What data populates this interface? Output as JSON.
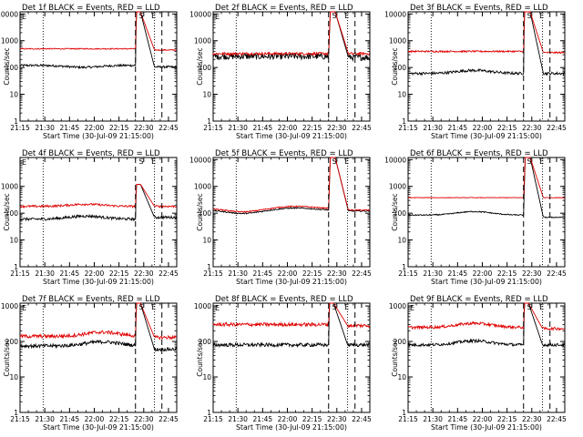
{
  "chart_data": [
    {
      "type": "line",
      "title": "Det 1f BLACK = Events, RED = LLD",
      "xlabel": "Start Time (30-Jul-09 21:15:00)",
      "ylabel": "Counts/sec",
      "yscale": "log",
      "ylim": [
        1,
        12000
      ],
      "xlim": [
        0,
        95
      ],
      "ymax_tick": 10000,
      "x_ticks": [
        0,
        15,
        30,
        45,
        60,
        75,
        90
      ],
      "x_tick_labels": [
        "21:15",
        "21:30",
        "21:45",
        "22:00",
        "22:15",
        "22:30",
        "22:45"
      ],
      "series": [
        {
          "name": "Events",
          "color": "#000000",
          "base": 120,
          "dips": [
            [
              38,
              0.85
            ]
          ],
          "noise": 0.04,
          "peak_scale": 1
        },
        {
          "name": "LLD",
          "color": "#e00000",
          "base": 500,
          "dips": [],
          "noise": 0.02,
          "peak_scale": 1
        }
      ],
      "peak": {
        "start": 70,
        "rise": 70.5,
        "top": 10000,
        "fall_start": 73,
        "end": 81.5,
        "post_black": 105,
        "post_red": 450
      },
      "markers": {
        "dotted": [
          14,
          81.5
        ],
        "dashed": [
          70,
          86
        ],
        "letters": [
          {
            "text": "S",
            "x": 73.5
          },
          {
            "text": "E",
            "x": 81
          }
        ],
        "e_left": "E"
      }
    },
    {
      "type": "line",
      "title": "Det 2f BLACK = Events, RED = LLD",
      "xlabel": "Start Time (30-Jul-09 21:15:00)",
      "ylabel": "Counts/sec",
      "yscale": "log",
      "ylim": [
        1,
        12000
      ],
      "xlim": [
        0,
        95
      ],
      "ymax_tick": 10000,
      "x_ticks": [
        0,
        15,
        30,
        45,
        60,
        75,
        90
      ],
      "x_tick_labels": [
        "21:15",
        "21:30",
        "21:45",
        "22:00",
        "22:15",
        "22:30",
        "22:45"
      ],
      "series": [
        {
          "name": "Events",
          "color": "#000000",
          "base": 260,
          "dips": [],
          "noise": 0.12,
          "peak_scale": 1
        },
        {
          "name": "LLD",
          "color": "#e00000",
          "base": 330,
          "dips": [],
          "noise": 0.05,
          "peak_scale": 1
        }
      ],
      "peak": {
        "start": 70,
        "rise": 71,
        "top": 10000,
        "fall_start": 74,
        "end": 82,
        "post_black": 240,
        "post_red": 330
      },
      "markers": {
        "dotted": [
          14,
          81.5
        ],
        "dashed": [
          70,
          86
        ],
        "letters": [
          {
            "text": "S",
            "x": 73.5
          },
          {
            "text": "E",
            "x": 81
          }
        ],
        "e_left": "E"
      }
    },
    {
      "type": "line",
      "title": "Det 3f BLACK = Events, RED = LLD",
      "xlabel": "Start Time (30-Jul-09 21:15:00)",
      "ylabel": "Counts/sec",
      "yscale": "log",
      "ylim": [
        1,
        12000
      ],
      "xlim": [
        0,
        95
      ],
      "ymax_tick": 10000,
      "x_ticks": [
        0,
        15,
        30,
        45,
        60,
        75,
        90
      ],
      "x_tick_labels": [
        "21:15",
        "21:30",
        "21:45",
        "22:00",
        "22:15",
        "22:30",
        "22:45"
      ],
      "series": [
        {
          "name": "Events",
          "color": "#000000",
          "base": 60,
          "dips": [
            [
              40,
              1.3
            ]
          ],
          "noise": 0.05,
          "peak_scale": 1
        },
        {
          "name": "LLD",
          "color": "#e00000",
          "base": 400,
          "dips": [],
          "noise": 0.03,
          "peak_scale": 1
        }
      ],
      "peak": {
        "start": 70,
        "rise": 70.5,
        "top": 10000,
        "fall_start": 74,
        "end": 82,
        "post_black": 60,
        "post_red": 360
      },
      "markers": {
        "dotted": [
          14,
          81.5
        ],
        "dashed": [
          70,
          86
        ],
        "letters": [
          {
            "text": "S",
            "x": 73.5
          },
          {
            "text": "E",
            "x": 81
          }
        ],
        "e_left": ""
      }
    },
    {
      "type": "line",
      "title": "Det 4f BLACK = Events, RED = LLD",
      "xlabel": "Start Time (30-Jul-09 21:15:00)",
      "ylabel": "Counts/sec",
      "yscale": "log",
      "ylim": [
        1,
        12000
      ],
      "xlim": [
        0,
        95
      ],
      "ymax_tick": 1000,
      "x_ticks": [
        0,
        15,
        30,
        45,
        60,
        75,
        90
      ],
      "x_tick_labels": [
        "21:15",
        "21:30",
        "21:45",
        "22:00",
        "22:15",
        "22:30",
        "22:45"
      ],
      "series": [
        {
          "name": "Events",
          "color": "#000000",
          "base": 60,
          "dips": [
            [
              40,
              1.3
            ]
          ],
          "noise": 0.05,
          "peak_scale": 1
        },
        {
          "name": "LLD",
          "color": "#e00000",
          "base": 180,
          "dips": [
            [
              40,
              1.2
            ]
          ],
          "noise": 0.04,
          "peak_scale": 1
        }
      ],
      "peak": {
        "start": 70,
        "rise": 70.5,
        "top": 1000,
        "fall_start": 73,
        "end": 81.5,
        "post_black": 70,
        "post_red": 180
      },
      "markers": {
        "dotted": [
          14,
          81.5
        ],
        "dashed": [
          70,
          86
        ],
        "letters": [
          {
            "text": "S",
            "x": 73.5
          },
          {
            "text": "E",
            "x": 81
          }
        ],
        "e_left": "E"
      }
    },
    {
      "type": "line",
      "title": "Det 5f BLACK = Events, RED = LLD",
      "xlabel": "Start Time (30-Jul-09 21:15:00)",
      "ylabel": "Counts/sec",
      "yscale": "log",
      "ylim": [
        1,
        12000
      ],
      "xlim": [
        0,
        95
      ],
      "ymax_tick": 10000,
      "x_ticks": [
        0,
        15,
        30,
        45,
        60,
        75,
        90
      ],
      "x_tick_labels": [
        "21:15",
        "21:30",
        "21:45",
        "22:00",
        "22:15",
        "22:30",
        "22:45"
      ],
      "series": [
        {
          "name": "Events",
          "color": "#000000",
          "base": 130,
          "dips": [
            [
              18,
              0.75
            ],
            [
              50,
              1.2
            ]
          ],
          "noise": 0.02,
          "peak_scale": 1
        },
        {
          "name": "LLD",
          "color": "#e00000",
          "base": 150,
          "dips": [
            [
              18,
              0.75
            ],
            [
              50,
              1.2
            ]
          ],
          "noise": 0.02,
          "peak_scale": 1
        }
      ],
      "peak": {
        "start": 70,
        "rise": 71,
        "top": 10000,
        "fall_start": 74,
        "end": 82,
        "post_black": 120,
        "post_red": 130
      },
      "markers": {
        "dotted": [
          14,
          81.5
        ],
        "dashed": [
          70,
          86
        ],
        "letters": [
          {
            "text": "S",
            "x": 73.5
          },
          {
            "text": "E",
            "x": 81
          }
        ],
        "e_left": ""
      }
    },
    {
      "type": "line",
      "title": "Det 6f BLACK = Events, RED = LLD",
      "xlabel": "Start Time (30-Jul-09 21:15:00)",
      "ylabel": "Counts/sec",
      "yscale": "log",
      "ylim": [
        1,
        12000
      ],
      "xlim": [
        0,
        95
      ],
      "ymax_tick": 10000,
      "x_ticks": [
        0,
        15,
        30,
        45,
        60,
        75,
        90
      ],
      "x_tick_labels": [
        "21:15",
        "21:30",
        "21:45",
        "22:00",
        "22:15",
        "22:30",
        "22:45"
      ],
      "series": [
        {
          "name": "Events",
          "color": "#000000",
          "base": 85,
          "dips": [
            [
              40,
              1.35
            ]
          ],
          "noise": 0.02,
          "peak_scale": 1
        },
        {
          "name": "LLD",
          "color": "#e00000",
          "base": 380,
          "dips": [],
          "noise": 0.01,
          "peak_scale": 1
        }
      ],
      "peak": {
        "start": 70,
        "rise": 71,
        "top": 10000,
        "fall_start": 74,
        "end": 82,
        "post_black": 70,
        "post_red": 380
      },
      "markers": {
        "dotted": [
          14,
          81.5
        ],
        "dashed": [
          70,
          86
        ],
        "letters": [
          {
            "text": "S",
            "x": 73.5
          },
          {
            "text": "E",
            "x": 81
          }
        ],
        "e_left": ""
      }
    },
    {
      "type": "line",
      "title": "Det 7f BLACK = Events, RED = LLD",
      "xlabel": "Start Time (30-Jul-09 21:15:00)",
      "ylabel": "Counts/sec",
      "yscale": "log",
      "ylim": [
        1,
        1200
      ],
      "xlim": [
        0,
        95
      ],
      "ymax_tick": 1000,
      "x_ticks": [
        0,
        15,
        30,
        45,
        60,
        75,
        90
      ],
      "x_tick_labels": [
        "21:15",
        "21:30",
        "21:45",
        "22:00",
        "22:15",
        "22:30",
        "22:45"
      ],
      "series": [
        {
          "name": "Events",
          "color": "#000000",
          "base": 75,
          "dips": [
            [
              50,
              1.3
            ]
          ],
          "noise": 0.05,
          "peak_scale": 1
        },
        {
          "name": "LLD",
          "color": "#e00000",
          "base": 140,
          "dips": [
            [
              50,
              1.3
            ]
          ],
          "noise": 0.05,
          "peak_scale": 1
        }
      ],
      "peak": {
        "start": 70,
        "rise": 70.5,
        "top": 1000,
        "fall_start": 73,
        "end": 81.5,
        "post_black": 60,
        "post_red": 130
      },
      "markers": {
        "dotted": [
          14,
          81.5
        ],
        "dashed": [
          70,
          86
        ],
        "letters": [
          {
            "text": "S",
            "x": 73.5
          },
          {
            "text": "E",
            "x": 81
          }
        ],
        "e_left": "E"
      }
    },
    {
      "type": "line",
      "title": "Det 8f BLACK = Events, RED = LLD",
      "xlabel": "Start Time (30-Jul-09 21:15:00)",
      "ylabel": "Counts/sec",
      "yscale": "log",
      "ylim": [
        1,
        1200
      ],
      "xlim": [
        0,
        95
      ],
      "ymax_tick": 1000,
      "x_ticks": [
        0,
        15,
        30,
        45,
        60,
        75,
        90
      ],
      "x_tick_labels": [
        "21:15",
        "21:30",
        "21:45",
        "22:00",
        "22:15",
        "22:30",
        "22:45"
      ],
      "series": [
        {
          "name": "Events",
          "color": "#000000",
          "base": 80,
          "dips": [],
          "noise": 0.05,
          "peak_scale": 1
        },
        {
          "name": "LLD",
          "color": "#e00000",
          "base": 300,
          "dips": [],
          "noise": 0.05,
          "peak_scale": 1
        }
      ],
      "peak": {
        "start": 70,
        "rise": 70.5,
        "top": 1000,
        "fall_start": 73,
        "end": 81.5,
        "post_black": 80,
        "post_red": 280
      },
      "markers": {
        "dotted": [
          14,
          81.5
        ],
        "dashed": [
          70,
          86
        ],
        "letters": [
          {
            "text": "S",
            "x": 73.5
          },
          {
            "text": "E",
            "x": 81
          }
        ],
        "e_left": "E"
      }
    },
    {
      "type": "line",
      "title": "Det 9f BLACK = Events, RED = LLD",
      "xlabel": "Start Time (30-Jul-09 21:15:00)",
      "ylabel": "Counts/sec",
      "yscale": "log",
      "ylim": [
        1,
        1200
      ],
      "xlim": [
        0,
        95
      ],
      "ymax_tick": 1000,
      "x_ticks": [
        0,
        15,
        30,
        45,
        60,
        75,
        90
      ],
      "x_tick_labels": [
        "21:15",
        "21:30",
        "21:45",
        "22:00",
        "22:15",
        "22:30",
        "22:45"
      ],
      "series": [
        {
          "name": "Events",
          "color": "#000000",
          "base": 80,
          "dips": [
            [
              40,
              1.3
            ]
          ],
          "noise": 0.04,
          "peak_scale": 1
        },
        {
          "name": "LLD",
          "color": "#e00000",
          "base": 250,
          "dips": [
            [
              40,
              1.3
            ]
          ],
          "noise": 0.04,
          "peak_scale": 1
        }
      ],
      "peak": {
        "start": 70,
        "rise": 70.5,
        "top": 1000,
        "fall_start": 73,
        "end": 81.5,
        "post_black": 80,
        "post_red": 230
      },
      "markers": {
        "dotted": [
          14,
          81.5
        ],
        "dashed": [
          70,
          86
        ],
        "letters": [
          {
            "text": "S",
            "x": 73.5
          },
          {
            "text": "E",
            "x": 81
          }
        ],
        "e_left": "E"
      }
    }
  ]
}
